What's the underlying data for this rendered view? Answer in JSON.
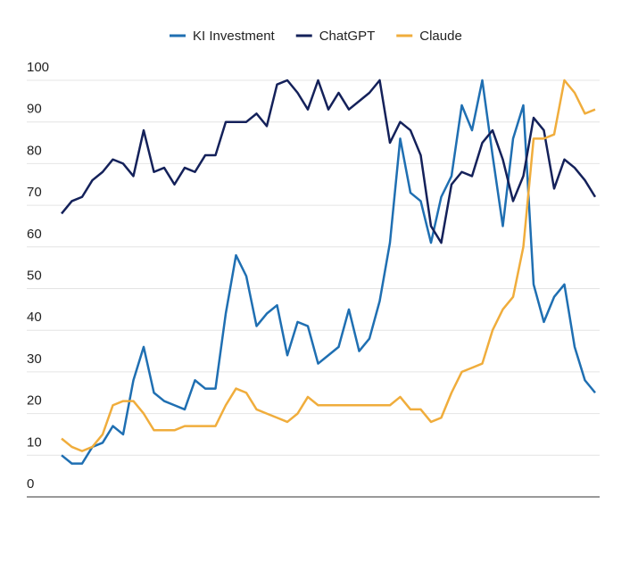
{
  "chart_data": {
    "type": "line",
    "series": [
      {
        "name": "KI Investment",
        "color": "#1f6fb2",
        "values": [
          10,
          8,
          8,
          12,
          13,
          17,
          15,
          28,
          36,
          25,
          23,
          22,
          21,
          28,
          26,
          26,
          44,
          58,
          53,
          41,
          44,
          46,
          34,
          42,
          41,
          32,
          34,
          36,
          45,
          35,
          38,
          47,
          61,
          86,
          73,
          71,
          61,
          72,
          77,
          94,
          88,
          100,
          82,
          65,
          86,
          94,
          51,
          42,
          48,
          51,
          36,
          28,
          25
        ]
      },
      {
        "name": "ChatGPT",
        "color": "#14215a",
        "values": [
          68,
          71,
          72,
          76,
          78,
          81,
          80,
          77,
          88,
          78,
          79,
          75,
          79,
          78,
          82,
          82,
          90,
          90,
          90,
          92,
          89,
          99,
          100,
          97,
          93,
          100,
          93,
          97,
          93,
          95,
          97,
          100,
          85,
          90,
          88,
          82,
          65,
          61,
          75,
          78,
          77,
          85,
          88,
          81,
          71,
          77,
          91,
          88,
          74,
          81,
          79,
          76,
          72
        ]
      },
      {
        "name": "Claude",
        "color": "#f0ad3c",
        "values": [
          14,
          12,
          11,
          12,
          15,
          22,
          23,
          23,
          20,
          16,
          16,
          16,
          17,
          17,
          17,
          17,
          22,
          26,
          25,
          21,
          20,
          19,
          18,
          20,
          24,
          22,
          22,
          22,
          22,
          22,
          22,
          22,
          22,
          24,
          21,
          21,
          18,
          19,
          25,
          30,
          31,
          32,
          40,
          45,
          48,
          60,
          86,
          86,
          87,
          100,
          97,
          92,
          93
        ]
      }
    ],
    "ylim": [
      0,
      100
    ],
    "yticks": [
      0,
      10,
      20,
      30,
      40,
      50,
      60,
      70,
      80,
      90,
      100
    ],
    "grid": true,
    "legend": "top"
  }
}
